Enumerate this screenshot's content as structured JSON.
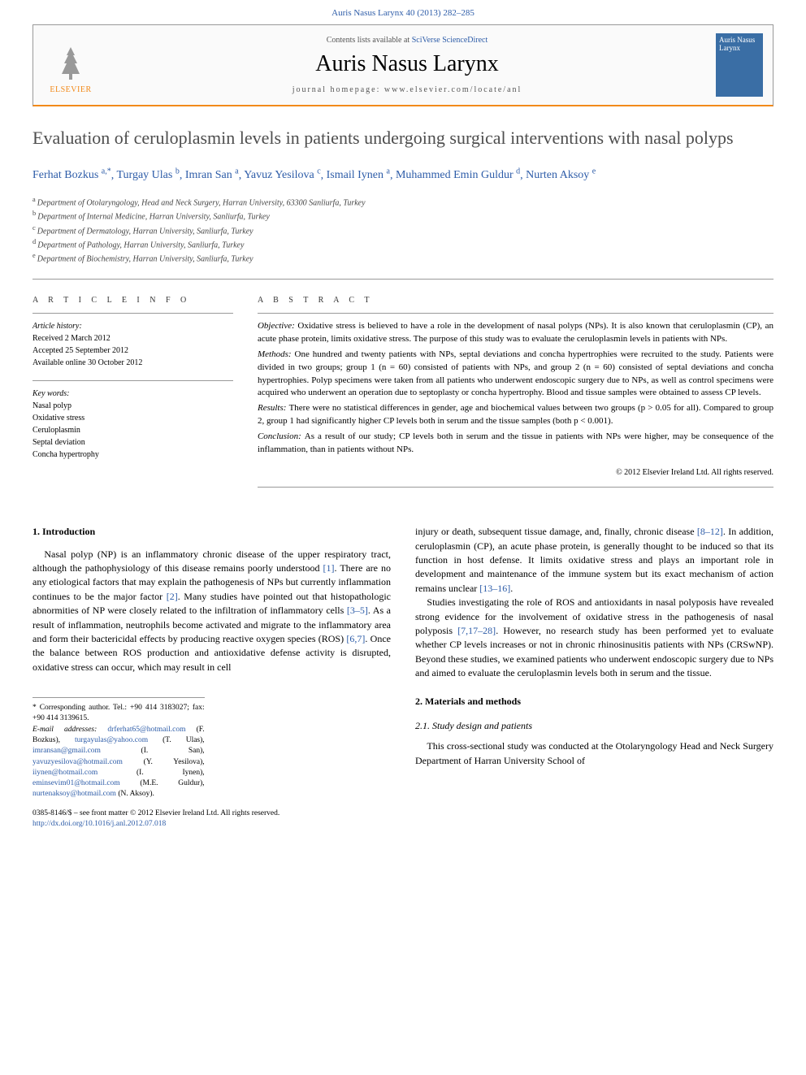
{
  "running_head": "Auris Nasus Larynx 40 (2013) 282–285",
  "header": {
    "publisher_text": "ELSEVIER",
    "avail_prefix": "Contents lists available at ",
    "avail_link": "SciVerse ScienceDirect",
    "journal_name": "Auris Nasus Larynx",
    "homepage": "journal homepage: www.elsevier.com/locate/anl",
    "cover_text": "Auris\nNasus\nLarynx"
  },
  "title": "Evaluation of ceruloplasmin levels in patients undergoing surgical interventions with nasal polyps",
  "authors": [
    {
      "name": "Ferhat Bozkus",
      "sup": "a,*"
    },
    {
      "name": "Turgay Ulas",
      "sup": "b"
    },
    {
      "name": "Imran San",
      "sup": "a"
    },
    {
      "name": "Yavuz Yesilova",
      "sup": "c"
    },
    {
      "name": "Ismail Iynen",
      "sup": "a"
    },
    {
      "name": "Muhammed Emin Guldur",
      "sup": "d"
    },
    {
      "name": "Nurten Aksoy",
      "sup": "e"
    }
  ],
  "affiliations": [
    {
      "key": "a",
      "text": "Department of Otolaryngology, Head and Neck Surgery, Harran University, 63300 Sanliurfa, Turkey"
    },
    {
      "key": "b",
      "text": "Department of Internal Medicine, Harran University, Sanliurfa, Turkey"
    },
    {
      "key": "c",
      "text": "Department of Dermatology, Harran University, Sanliurfa, Turkey"
    },
    {
      "key": "d",
      "text": "Department of Pathology, Harran University, Sanliurfa, Turkey"
    },
    {
      "key": "e",
      "text": "Department of Biochemistry, Harran University, Sanliurfa, Turkey"
    }
  ],
  "article_info": {
    "heading": "A R T I C L E   I N F O",
    "history_label": "Article history:",
    "received": "Received 2 March 2012",
    "accepted": "Accepted 25 September 2012",
    "online": "Available online 30 October 2012",
    "keywords_label": "Key words:",
    "keywords": [
      "Nasal polyp",
      "Oxidative stress",
      "Ceruloplasmin",
      "Septal deviation",
      "Concha hypertrophy"
    ]
  },
  "abstract": {
    "heading": "A B S T R A C T",
    "sections": [
      {
        "label": "Objective:",
        "text": "Oxidative stress is believed to have a role in the development of nasal polyps (NPs). It is also known that ceruloplasmin (CP), an acute phase protein, limits oxidative stress. The purpose of this study was to evaluate the ceruloplasmin levels in patients with NPs."
      },
      {
        "label": "Methods:",
        "text": "One hundred and twenty patients with NPs, septal deviations and concha hypertrophies were recruited to the study. Patients were divided in two groups; group 1 (n = 60) consisted of patients with NPs, and group 2 (n = 60) consisted of septal deviations and concha hypertrophies. Polyp specimens were taken from all patients who underwent endoscopic surgery due to NPs, as well as control specimens were acquired who underwent an operation due to septoplasty or concha hypertrophy. Blood and tissue samples were obtained to assess CP levels."
      },
      {
        "label": "Results:",
        "text": "There were no statistical differences in gender, age and biochemical values between two groups (p > 0.05 for all). Compared to group 2, group 1 had significantly higher CP levels both in serum and the tissue samples (both p < 0.001)."
      },
      {
        "label": "Conclusion:",
        "text": "As a result of our study; CP levels both in serum and the tissue in patients with NPs were higher, may be consequence of the inflammation, than in patients without NPs."
      }
    ],
    "copyright": "© 2012 Elsevier Ireland Ltd. All rights reserved."
  },
  "body_left": {
    "h1": "1. Introduction",
    "p1a": "Nasal polyp (NP) is an inflammatory chronic disease of the upper respiratory tract, although the pathophysiology of this disease remains poorly understood ",
    "r1": "[1]",
    "p1b": ". There are no any etiological factors that may explain the pathogenesis of NPs but currently inflammation continues to be the major factor ",
    "r2": "[2]",
    "p1c": ". Many studies have pointed out that histopathologic abnormities of NP were closely related to the infiltration of inflammatory cells ",
    "r3": "[3–5]",
    "p1d": ". As a result of inflammation, neutrophils become activated and migrate to the inflammatory area and form their bactericidal effects by producing reactive oxygen species (ROS) ",
    "r4": "[6,7]",
    "p1e": ". Once the balance between ROS production and antioxidative defense activity is disrupted, oxidative stress can occur, which may result in cell"
  },
  "body_right": {
    "p1a": "injury or death, subsequent tissue damage, and, finally, chronic disease ",
    "r1": "[8–12]",
    "p1b": ". In addition, ceruloplasmin (CP), an acute phase protein, is generally thought to be induced so that its function in host defense. It limits oxidative stress and plays an important role in development and maintenance of the immune system but its exact mechanism of action remains unclear ",
    "r2": "[13–16]",
    "p1c": ".",
    "p2a": "Studies investigating the role of ROS and antioxidants in nasal polyposis have revealed strong evidence for the involvement of oxidative stress in the pathogenesis of nasal polyposis ",
    "r3": "[7,17–28]",
    "p2b": ". However, no research study has been performed yet to evaluate whether CP levels increases or not in chronic rhinosinusitis patients with NPs (CRSwNP). Beyond these studies, we examined patients who underwent endoscopic surgery due to NPs and aimed to evaluate the ceruloplasmin levels both in serum and the tissue.",
    "h2": "2. Materials and methods",
    "h2_1": "2.1. Study design and patients",
    "p3": "This cross-sectional study was conducted at the Otolaryngology Head and Neck Surgery Department of Harran University School of"
  },
  "footnotes": {
    "corr": "* Corresponding author. Tel.: +90 414 3183027; fax: +90 414 3139615.",
    "email_label": "E-mail addresses:",
    "emails": [
      {
        "addr": "drferhat65@hotmail.com",
        "who": " (F. Bozkus), "
      },
      {
        "addr": "turgayulas@yahoo.com",
        "who": " (T. Ulas), "
      },
      {
        "addr": "imransan@gmail.com",
        "who": " (I. San), "
      },
      {
        "addr": "yavuzyesilova@hotmail.com",
        "who": " (Y. Yesilova), "
      },
      {
        "addr": "iiynen@hotmail.com",
        "who": " (I. Iynen), "
      },
      {
        "addr": "eminsevim01@hotmail.com",
        "who": " (M.E. Guldur), "
      },
      {
        "addr": "nurtenaksoy@hotmail.com",
        "who": " (N. Aksoy)."
      }
    ]
  },
  "front_matter": {
    "line1": "0385-8146/$ – see front matter © 2012 Elsevier Ireland Ltd. All rights reserved.",
    "doi": "http://dx.doi.org/10.1016/j.anl.2012.07.018"
  },
  "colors": {
    "link": "#2d5ca8",
    "orange": "#f28a1a",
    "text": "#000000",
    "title_gray": "#4e4e4e",
    "cover_bg": "#3a6ea5"
  }
}
